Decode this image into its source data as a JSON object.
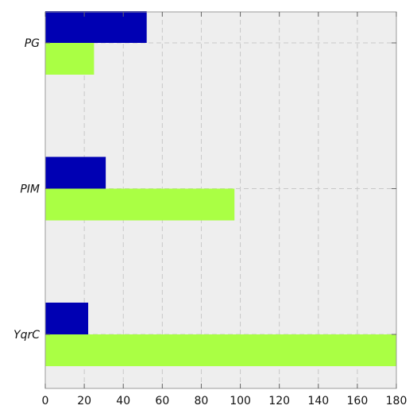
{
  "chart_data": {
    "type": "bar",
    "orientation": "horizontal",
    "categories": [
      "PG",
      "PIM",
      "YqrC"
    ],
    "series": [
      {
        "values": [
          52,
          31,
          22
        ],
        "color": "#0000b3"
      },
      {
        "values": [
          25,
          97,
          180
        ],
        "color": "#aaff44"
      }
    ],
    "xlim": [
      0,
      180
    ],
    "x_ticks": [
      0,
      20,
      40,
      60,
      80,
      100,
      120,
      140,
      160,
      180
    ],
    "grid": true,
    "plot_background": "#eeeeee",
    "grid_color": "#c8c8c8"
  }
}
